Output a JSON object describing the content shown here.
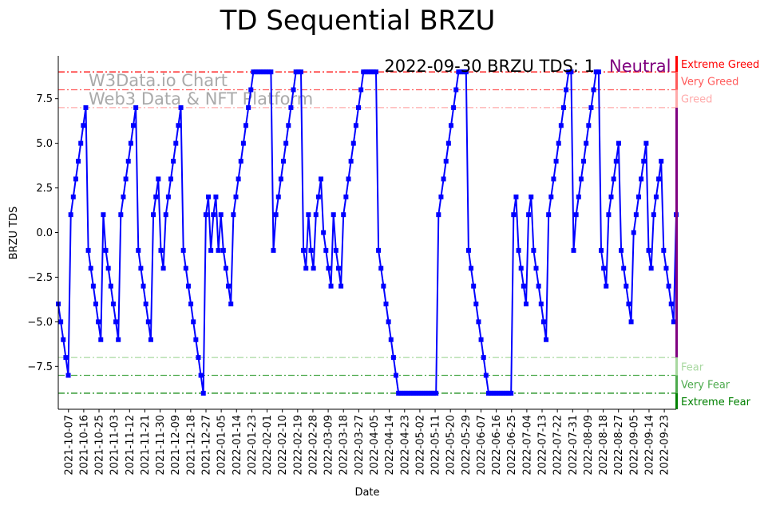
{
  "chart_data": {
    "type": "line",
    "title": "TD Sequential BRZU",
    "xlabel": "Date",
    "ylabel": "BRZU TDS",
    "series": [
      {
        "name": "BRZU TDS",
        "color": "#0000ff",
        "marker": "square"
      }
    ],
    "x_first_date": "2021-10-01",
    "x_last_date": "2022-09-30",
    "x_spacing": "evenly spaced trading days",
    "values": [
      -4,
      -5,
      -6,
      -7,
      -8,
      1,
      2,
      3,
      4,
      5,
      6,
      7,
      -1,
      -2,
      -3,
      -4,
      -5,
      -6,
      1,
      -1,
      -2,
      -3,
      -4,
      -5,
      -6,
      1,
      2,
      3,
      4,
      5,
      6,
      7,
      -1,
      -2,
      -3,
      -4,
      -5,
      -6,
      1,
      2,
      3,
      -1,
      -2,
      1,
      2,
      3,
      4,
      5,
      6,
      7,
      -1,
      -2,
      -3,
      -4,
      -5,
      -6,
      -7,
      -8,
      -9,
      1,
      2,
      -1,
      1,
      2,
      -1,
      1,
      -1,
      -2,
      -3,
      -4,
      1,
      2,
      3,
      4,
      5,
      6,
      7,
      8,
      9,
      9,
      9,
      9,
      9,
      9,
      9,
      9,
      -1,
      1,
      2,
      3,
      4,
      5,
      6,
      7,
      8,
      9,
      9,
      9,
      -1,
      -2,
      1,
      -1,
      -2,
      1,
      2,
      3,
      0,
      -1,
      -2,
      -3,
      1,
      -1,
      -2,
      -3,
      1,
      2,
      3,
      4,
      5,
      6,
      7,
      8,
      9,
      9,
      9,
      9,
      9,
      9,
      -1,
      -2,
      -3,
      -4,
      -5,
      -6,
      -7,
      -8,
      -9,
      -9,
      -9,
      -9,
      -9,
      -9,
      -9,
      -9,
      -9,
      -9,
      -9,
      -9,
      -9,
      -9,
      -9,
      -9,
      1,
      2,
      3,
      4,
      5,
      6,
      7,
      8,
      9,
      9,
      9,
      9,
      -1,
      -2,
      -3,
      -4,
      -5,
      -6,
      -7,
      -8,
      -9,
      -9,
      -9,
      -9,
      -9,
      -9,
      -9,
      -9,
      -9,
      -9,
      1,
      2,
      -1,
      -2,
      -3,
      -4,
      1,
      2,
      -1,
      -2,
      -3,
      -4,
      -5,
      -6,
      1,
      2,
      3,
      4,
      5,
      6,
      7,
      8,
      9,
      9,
      -1,
      1,
      2,
      3,
      4,
      5,
      6,
      7,
      8,
      9,
      9,
      -1,
      -2,
      -3,
      1,
      2,
      3,
      4,
      5,
      -1,
      -2,
      -3,
      -4,
      -5,
      0,
      1,
      2,
      3,
      4,
      5,
      -1,
      -2,
      1,
      2,
      3,
      4,
      -1,
      -2,
      -3,
      -4,
      -5,
      1
    ],
    "ylim": [
      -9.9,
      9.9
    ],
    "yticks": [
      -7.5,
      -5.0,
      -2.5,
      0.0,
      2.5,
      5.0,
      7.5
    ],
    "ytick_labels": [
      "−7.5",
      "−5.0",
      "−2.5",
      "0.0",
      "2.5",
      "5.0",
      "7.5"
    ],
    "xtick_labels": [
      "2021-10-07",
      "2021-10-16",
      "2021-10-25",
      "2021-11-03",
      "2021-11-12",
      "2021-11-21",
      "2021-11-30",
      "2021-12-09",
      "2021-12-18",
      "2021-12-27",
      "2022-01-05",
      "2022-01-14",
      "2022-01-23",
      "2022-02-01",
      "2022-02-10",
      "2022-02-19",
      "2022-02-28",
      "2022-03-09",
      "2022-03-18",
      "2022-03-27",
      "2022-04-05",
      "2022-04-14",
      "2022-04-23",
      "2022-05-02",
      "2022-05-11",
      "2022-05-20",
      "2022-05-29",
      "2022-06-07",
      "2022-06-16",
      "2022-06-25",
      "2022-07-04",
      "2022-07-13",
      "2022-07-22",
      "2022-07-31",
      "2022-08-09",
      "2022-08-18",
      "2022-08-27",
      "2022-09-05",
      "2022-09-14",
      "2022-09-23"
    ],
    "levels": [
      {
        "label": "Extreme Greed",
        "value": 9,
        "color": "#ff0000",
        "band": [
          9,
          9.9
        ]
      },
      {
        "label": "Very Greed",
        "value": 8,
        "color": "#ff5a5a",
        "band": [
          8,
          9
        ]
      },
      {
        "label": "Greed",
        "value": 7,
        "color": "#ffaaaa",
        "band": [
          7,
          8
        ]
      },
      {
        "label": "Fear",
        "value": -7,
        "color": "#a8d8a0",
        "band": [
          -8,
          -7
        ]
      },
      {
        "label": "Very Fear",
        "value": -8,
        "color": "#4caa4c",
        "band": [
          -9,
          -8
        ]
      },
      {
        "label": "Extreme Fear",
        "value": -9,
        "color": "#008000",
        "band": [
          -9.9,
          -9
        ]
      }
    ],
    "neutral_band": {
      "band": [
        -7,
        7
      ],
      "color": "#800080"
    },
    "annotation": {
      "text": "2022-09-30 BRZU TDS: 1",
      "state": "Neutral",
      "state_color": "#800080"
    },
    "watermark": {
      "line1": "W3Data.io Chart",
      "line2": "Web3 Data & NFT Platform"
    },
    "grid": false
  }
}
